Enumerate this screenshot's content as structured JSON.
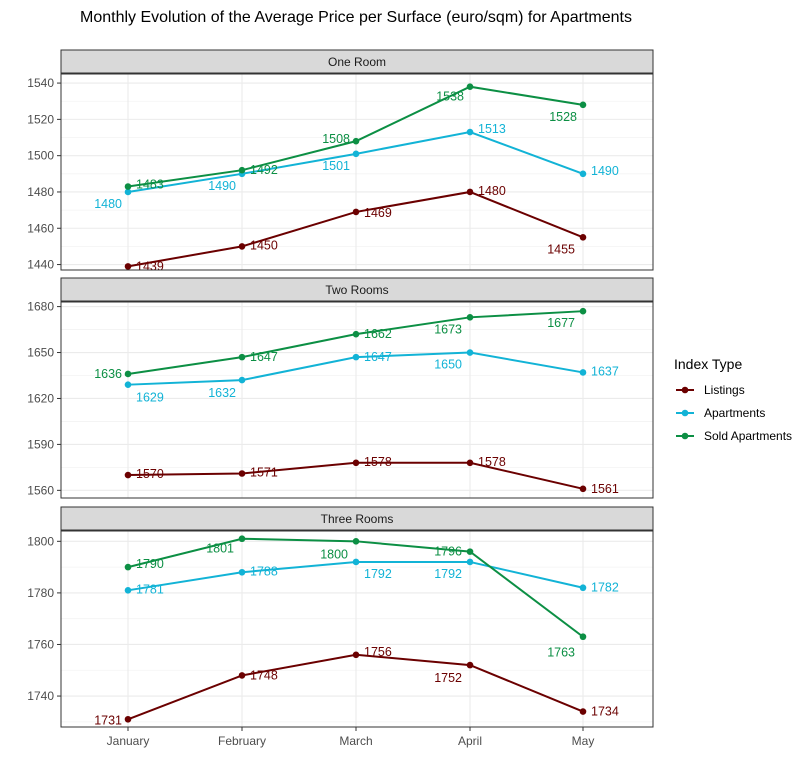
{
  "chart_data": {
    "type": "line",
    "title": "Monthly Evolution of the Average Price per Surface (euro/sqm) for Apartments",
    "xlabel": "",
    "ylabel": "",
    "categories": [
      "January",
      "February",
      "March",
      "April",
      "May"
    ],
    "legend": {
      "title": "Index Type",
      "placement": "right",
      "entries": [
        "Listings",
        "Apartments",
        "Sold Apartments"
      ]
    },
    "colors": {
      "Listings": "#6b0000",
      "Apartments": "#12b3d6",
      "Sold Apartments": "#0c8f44"
    },
    "grid": true,
    "panels": [
      {
        "strip": "One Room",
        "ylim": [
          1437,
          1545
        ],
        "yticks": [
          1440,
          1460,
          1480,
          1500,
          1520,
          1540
        ],
        "series": [
          {
            "name": "Listings",
            "values": [
              1439,
              1450,
              1469,
              1480,
              1455
            ]
          },
          {
            "name": "Apartments",
            "values": [
              1480,
              1490,
              1501,
              1513,
              1490
            ]
          },
          {
            "name": "Sold Apartments",
            "values": [
              1483,
              1492,
              1508,
              1538,
              1528
            ]
          }
        ]
      },
      {
        "strip": "Two Rooms",
        "ylim": [
          1555,
          1683
        ],
        "yticks": [
          1560,
          1590,
          1620,
          1650,
          1680
        ],
        "series": [
          {
            "name": "Listings",
            "values": [
              1570,
              1571,
              1578,
              1578,
              1561
            ]
          },
          {
            "name": "Apartments",
            "values": [
              1629,
              1632,
              1647,
              1650,
              1637
            ]
          },
          {
            "name": "Sold Apartments",
            "values": [
              1636,
              1647,
              1662,
              1673,
              1677
            ]
          }
        ]
      },
      {
        "strip": "Three Rooms",
        "ylim": [
          1728,
          1804
        ],
        "yticks": [
          1740,
          1760,
          1780,
          1800
        ],
        "series": [
          {
            "name": "Listings",
            "values": [
              1731,
              1748,
              1756,
              1752,
              1734
            ]
          },
          {
            "name": "Apartments",
            "values": [
              1781,
              1788,
              1792,
              1792,
              1782
            ]
          },
          {
            "name": "Sold Apartments",
            "values": [
              1790,
              1801,
              1800,
              1796,
              1763
            ]
          }
        ]
      }
    ]
  }
}
